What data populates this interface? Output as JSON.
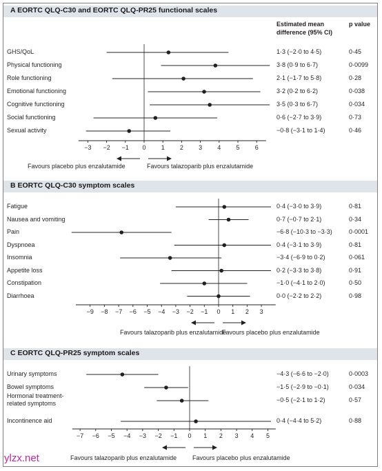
{
  "est_header": "Estimated mean\ndifference (95% CI)",
  "p_header": "p value",
  "watermark": "ylzx.net",
  "chart_data": [
    {
      "type": "forest",
      "title": "A  EORTC QLQ-C30 and EORTC QLQ-PR25 functional scales",
      "xlim": [
        -3.5,
        6.5
      ],
      "ticks": [
        -3,
        -2,
        -1,
        0,
        1,
        2,
        3,
        4,
        5,
        6
      ],
      "favours_left": "Favours placebo plus enzalutamide",
      "favours_right": "Favours talazoparib plus enzalutamide",
      "rows": [
        {
          "label": "GHS/QoL",
          "est": 1.3,
          "lo": -2.0,
          "hi": 4.5,
          "text": "1·3 (−2·0 to 4·5)",
          "p": "0·45"
        },
        {
          "label": "Physical functioning",
          "est": 3.8,
          "lo": 0.9,
          "hi": 6.7,
          "text": "3·8 (0·9 to 6·7)",
          "p": "0·0099"
        },
        {
          "label": "Role functioning",
          "est": 2.1,
          "lo": -1.7,
          "hi": 5.8,
          "text": "2·1 (−1·7 to 5·8)",
          "p": "0·28"
        },
        {
          "label": "Emotional functioning",
          "est": 3.2,
          "lo": 0.2,
          "hi": 6.2,
          "text": "3·2 (0·2 to 6·2)",
          "p": "0·038"
        },
        {
          "label": "Cognitive functioning",
          "est": 3.5,
          "lo": 0.3,
          "hi": 6.7,
          "text": "3·5 (0·3 to 6·7)",
          "p": "0·034"
        },
        {
          "label": "Social functioning",
          "est": 0.6,
          "lo": -2.7,
          "hi": 3.9,
          "text": "0·6 (−2·7 to 3·9)",
          "p": "0·73"
        },
        {
          "label": "Sexual activity",
          "est": -0.8,
          "lo": -3.1,
          "hi": 1.4,
          "text": "−0·8 (−3·1 to 1·4)",
          "p": "0·46"
        }
      ]
    },
    {
      "type": "forest",
      "title": "B  EORTC QLQ-C30 symptom scales",
      "xlim": [
        -10,
        4
      ],
      "ticks": [
        -9,
        -8,
        -7,
        -6,
        -5,
        -4,
        -3,
        -2,
        -1,
        0,
        1,
        2,
        3
      ],
      "favours_left": "Favours talazoparib plus enzalutamide",
      "favours_right": "Favours placebo plus enzalutamide",
      "rows": [
        {
          "label": "Fatigue",
          "est": 0.4,
          "lo": -3.0,
          "hi": 3.9,
          "text": "0·4 (−3·0 to 3·9)",
          "p": "0·81"
        },
        {
          "label": "Nausea and vomiting",
          "est": 0.7,
          "lo": -0.7,
          "hi": 2.1,
          "text": "0·7 (−0·7 to 2·1)",
          "p": "0·34"
        },
        {
          "label": "Pain",
          "est": -6.8,
          "lo": -10.3,
          "hi": -3.3,
          "text": "−6·8 (−10·3 to −3·3)",
          "p": "0·0001"
        },
        {
          "label": "Dyspnoea",
          "est": 0.4,
          "lo": -3.1,
          "hi": 3.9,
          "text": "0·4 (−3·1 to 3·9)",
          "p": "0·81"
        },
        {
          "label": "Insomnia",
          "est": -3.4,
          "lo": -6.9,
          "hi": 0.2,
          "text": "−3·4 (−6·9 to 0·2)",
          "p": "0·061"
        },
        {
          "label": "Appetite loss",
          "est": 0.2,
          "lo": -3.3,
          "hi": 3.8,
          "text": "0·2 (−3·3 to 3·8)",
          "p": "0·91"
        },
        {
          "label": "Constipation",
          "est": -1.0,
          "lo": -4.1,
          "hi": 2.0,
          "text": "−1·0 (−4·1 to 2·0)",
          "p": "0·50"
        },
        {
          "label": "Diarrhoea",
          "est": 0.0,
          "lo": -2.2,
          "hi": 2.2,
          "text": "0·0 (−2·2 to 2·2)",
          "p": "0·98"
        }
      ]
    },
    {
      "type": "forest",
      "title": "C  EORTC QLQ-PR25 symptom scales",
      "xlim": [
        -7.5,
        5.5
      ],
      "ticks": [
        -7,
        -6,
        -5,
        -4,
        -3,
        -2,
        -1,
        0,
        1,
        2,
        3,
        4,
        5
      ],
      "favours_left": "Favours talazoparib plus enzalutamide",
      "favours_right": "Favours placebo plus enzalutamide",
      "rows": [
        {
          "label": "Urinary symptoms",
          "est": -4.3,
          "lo": -6.6,
          "hi": -2.0,
          "text": "−4·3 (−6·6 to −2·0)",
          "p": "0·0003"
        },
        {
          "label": "Bowel symptoms",
          "est": -1.5,
          "lo": -2.9,
          "hi": -0.1,
          "text": "−1·5 (−2·9 to −0·1)",
          "p": "0·034"
        },
        {
          "label": "Hormonal treatment-\nrelated symptoms",
          "est": -0.5,
          "lo": -2.1,
          "hi": 1.2,
          "text": "−0·5 (−2·1 to 1·2)",
          "p": "0·57"
        },
        {
          "label": "Incontinence aid",
          "est": 0.4,
          "lo": -4.4,
          "hi": 5.2,
          "text": "0·4 (−4·4 to 5·2)",
          "p": "0·88"
        }
      ]
    }
  ]
}
